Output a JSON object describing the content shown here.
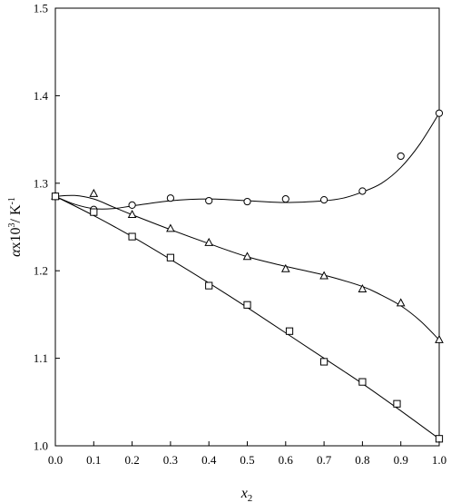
{
  "chart_data": {
    "type": "scatter",
    "xlabel_main": "x",
    "xlabel_sub": "2",
    "ylabel_alpha": "α",
    "ylabel_rest": "x10",
    "ylabel_sup": "3",
    "ylabel_unit": "/ K",
    "ylabel_unit_sup": "-1",
    "xlim": [
      0.0,
      1.0
    ],
    "ylim": [
      1.0,
      1.5
    ],
    "xticks": [
      "0.0",
      "0.1",
      "0.2",
      "0.3",
      "0.4",
      "0.5",
      "0.6",
      "0.7",
      "0.8",
      "0.9",
      "1.0"
    ],
    "yticks": [
      "1.0",
      "1.1",
      "1.2",
      "1.3",
      "1.4",
      "1.5"
    ],
    "grid": false,
    "series": [
      {
        "marker": "circle",
        "x": [
          0.0,
          0.1,
          0.2,
          0.3,
          0.4,
          0.5,
          0.6,
          0.7,
          0.8,
          0.9,
          1.0
        ],
        "y": [
          1.285,
          1.27,
          1.275,
          1.283,
          1.28,
          1.279,
          1.282,
          1.281,
          1.291,
          1.331,
          1.38
        ],
        "fit": [
          [
            0.0,
            1.285
          ],
          [
            0.05,
            1.276
          ],
          [
            0.1,
            1.271
          ],
          [
            0.15,
            1.271
          ],
          [
            0.2,
            1.274
          ],
          [
            0.3,
            1.28
          ],
          [
            0.4,
            1.282
          ],
          [
            0.5,
            1.28
          ],
          [
            0.6,
            1.278
          ],
          [
            0.7,
            1.28
          ],
          [
            0.75,
            1.283
          ],
          [
            0.8,
            1.29
          ],
          [
            0.85,
            1.3
          ],
          [
            0.9,
            1.318
          ],
          [
            0.95,
            1.345
          ],
          [
            1.0,
            1.38
          ]
        ]
      },
      {
        "marker": "triangle",
        "x": [
          0.0,
          0.1,
          0.2,
          0.3,
          0.4,
          0.5,
          0.6,
          0.7,
          0.8,
          0.9,
          1.0
        ],
        "y": [
          1.285,
          1.288,
          1.264,
          1.248,
          1.232,
          1.216,
          1.202,
          1.194,
          1.179,
          1.163,
          1.121
        ],
        "fit": [
          [
            0.0,
            1.285
          ],
          [
            0.05,
            1.286
          ],
          [
            0.1,
            1.282
          ],
          [
            0.15,
            1.273
          ],
          [
            0.2,
            1.264
          ],
          [
            0.3,
            1.247
          ],
          [
            0.4,
            1.231
          ],
          [
            0.5,
            1.216
          ],
          [
            0.6,
            1.205
          ],
          [
            0.7,
            1.195
          ],
          [
            0.8,
            1.182
          ],
          [
            0.85,
            1.172
          ],
          [
            0.9,
            1.16
          ],
          [
            0.95,
            1.143
          ],
          [
            1.0,
            1.121
          ]
        ]
      },
      {
        "marker": "square",
        "x": [
          0.0,
          0.1,
          0.2,
          0.3,
          0.4,
          0.5,
          0.61,
          0.7,
          0.8,
          0.89,
          1.0
        ],
        "y": [
          1.285,
          1.267,
          1.239,
          1.215,
          1.183,
          1.161,
          1.131,
          1.096,
          1.073,
          1.048,
          1.008
        ],
        "fit": [
          [
            0.0,
            1.285
          ],
          [
            0.1,
            1.263
          ],
          [
            0.2,
            1.239
          ],
          [
            0.3,
            1.213
          ],
          [
            0.4,
            1.186
          ],
          [
            0.5,
            1.158
          ],
          [
            0.6,
            1.129
          ],
          [
            0.7,
            1.1
          ],
          [
            0.8,
            1.071
          ],
          [
            0.9,
            1.04
          ],
          [
            1.0,
            1.008
          ]
        ]
      }
    ]
  }
}
